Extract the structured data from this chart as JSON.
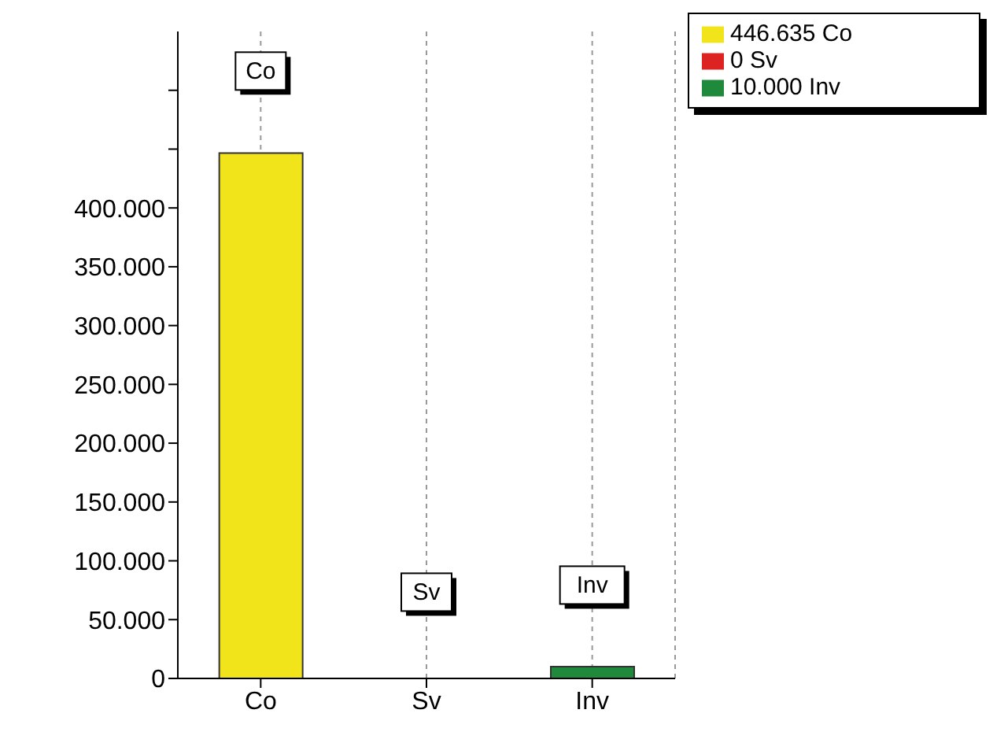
{
  "chart_data": {
    "type": "bar",
    "categories": [
      "Co",
      "Sv",
      "Inv"
    ],
    "series": [
      {
        "name": "446.635 Co",
        "color": "#f2e41a",
        "values": [
          446635,
          null,
          null
        ]
      },
      {
        "name": "0 Sv",
        "color": "#dd2222",
        "values": [
          null,
          0,
          null
        ]
      },
      {
        "name": "10.000 Inv",
        "color": "#1f8a3c",
        "values": [
          null,
          null,
          10000
        ]
      }
    ],
    "ylim": [
      0,
      550000
    ],
    "yticks": [
      0,
      {
        "value": 50000,
        "label": "50.000"
      },
      {
        "value": 100000,
        "label": "100.000"
      },
      {
        "value": 150000,
        "label": "150.000"
      },
      {
        "value": 200000,
        "label": "200.000"
      },
      {
        "value": 250000,
        "label": "250.000"
      },
      {
        "value": 300000,
        "label": "300.000"
      },
      {
        "value": 350000,
        "label": "350.000"
      },
      {
        "value": 400000,
        "label": "400.000"
      },
      {
        "value": 450000,
        "label": null
      },
      {
        "value": 500000,
        "label": null
      }
    ],
    "grid": "x",
    "legend": "top right",
    "annotations": [
      {
        "text": "Co",
        "x": "Co",
        "y": 515000
      },
      {
        "text": "Sv",
        "x": "Sv",
        "y": 72000
      },
      {
        "text": "Inv",
        "x": "Inv",
        "y": 78000
      }
    ]
  }
}
